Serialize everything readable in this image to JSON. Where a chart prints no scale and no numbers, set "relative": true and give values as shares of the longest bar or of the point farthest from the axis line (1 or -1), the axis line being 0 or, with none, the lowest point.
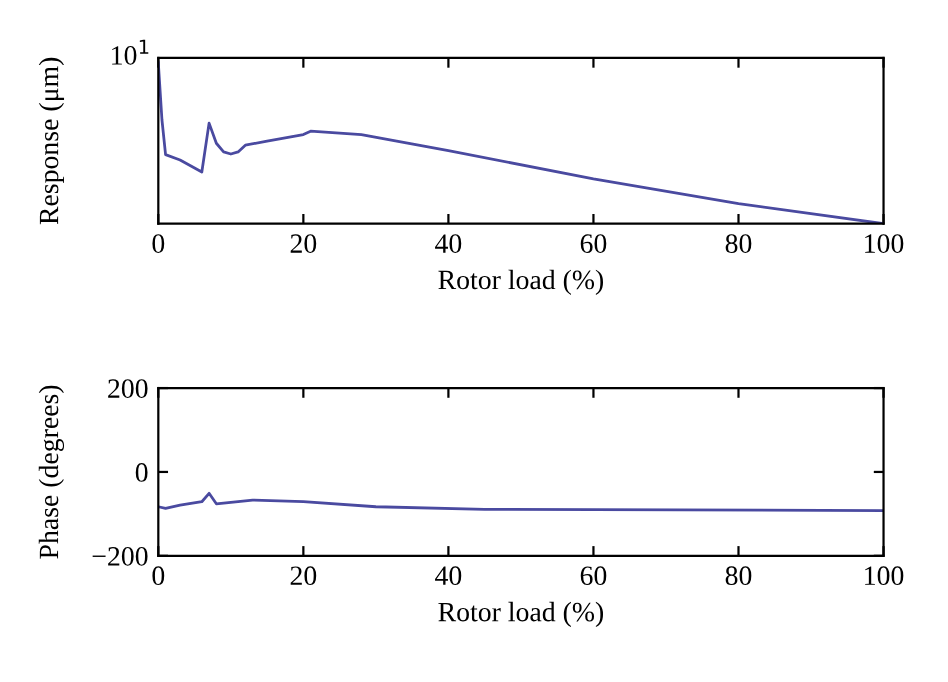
{
  "chart_data": [
    {
      "type": "line",
      "relative": true,
      "xlabel": "Rotor load (%)",
      "ylabel": "Response (μm)",
      "annotations": [
        "10$^{1}$"
      ],
      "xlim": [
        0,
        100
      ],
      "xticks": [
        0,
        20,
        40,
        60,
        80,
        100
      ],
      "grid": false,
      "legend": false,
      "series": [
        {
          "color": "#4a4aa0",
          "x": [
            0,
            0.5,
            1,
            3,
            6,
            7,
            8,
            9,
            10,
            11,
            12,
            15,
            20,
            21,
            28,
            40,
            60,
            80,
            100
          ],
          "values": [
            1.0,
            0.646,
            0.429,
            0.396,
            0.321,
            0.625,
            0.5,
            0.446,
            0.433,
            0.446,
            0.488,
            0.513,
            0.554,
            0.575,
            0.554,
            0.454,
            0.279,
            0.125,
            0
          ]
        }
      ]
    },
    {
      "type": "line",
      "xlabel": "Rotor load (%)",
      "ylabel": "Phase (degrees)",
      "xlim": [
        0,
        100
      ],
      "xticks": [
        0,
        20,
        40,
        60,
        80,
        100
      ],
      "ylim": [
        -200,
        200
      ],
      "yticks": [
        {
          "value": -200,
          "label": "−200"
        },
        0,
        200
      ],
      "grid": false,
      "legend": false,
      "series": [
        {
          "color": "#4a4aa0",
          "x": [
            0,
            1,
            3,
            6,
            7,
            8,
            13,
            20,
            30,
            45,
            60,
            100
          ],
          "values": [
            -83,
            -87,
            -79,
            -71,
            -51,
            -76,
            -67,
            -71,
            -83,
            -89,
            -90,
            -92
          ]
        }
      ]
    }
  ]
}
